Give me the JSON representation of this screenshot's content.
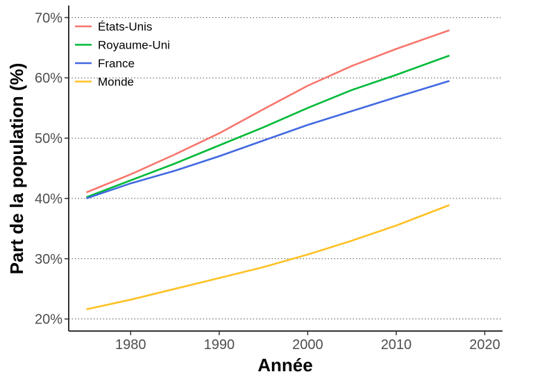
{
  "chart_data": {
    "type": "line",
    "xlabel": "Année",
    "ylabel": "Part de la population (%)",
    "xlim": [
      1973,
      2022
    ],
    "ylim": [
      18,
      72
    ],
    "x_ticks": [
      1980,
      1990,
      2000,
      2010,
      2020
    ],
    "y_ticks": [
      20,
      30,
      40,
      50,
      60,
      70
    ],
    "y_tick_labels": [
      "20%",
      "30%",
      "40%",
      "50%",
      "60%",
      "70%"
    ],
    "grid": "horizontal dotted",
    "legend_position": "top-left",
    "x": [
      1975,
      1980,
      1985,
      1990,
      1995,
      2000,
      2005,
      2010,
      2016
    ],
    "series": [
      {
        "name": "États-Unis",
        "color": "#F8766D",
        "values": [
          41.0,
          44.0,
          47.3,
          50.8,
          54.8,
          58.7,
          62.0,
          64.8,
          67.9
        ]
      },
      {
        "name": "Royaume-Uni",
        "color": "#00BA38",
        "values": [
          40.2,
          43.0,
          45.8,
          48.8,
          51.8,
          55.0,
          58.0,
          60.5,
          63.7
        ]
      },
      {
        "name": "France",
        "color": "#4169E1",
        "values": [
          40.0,
          42.5,
          44.6,
          47.0,
          49.6,
          52.2,
          54.5,
          56.8,
          59.5
        ]
      },
      {
        "name": "Monde",
        "color": "#FFC125",
        "values": [
          21.6,
          23.2,
          25.0,
          26.8,
          28.6,
          30.7,
          33.0,
          35.5,
          38.9
        ]
      }
    ]
  }
}
